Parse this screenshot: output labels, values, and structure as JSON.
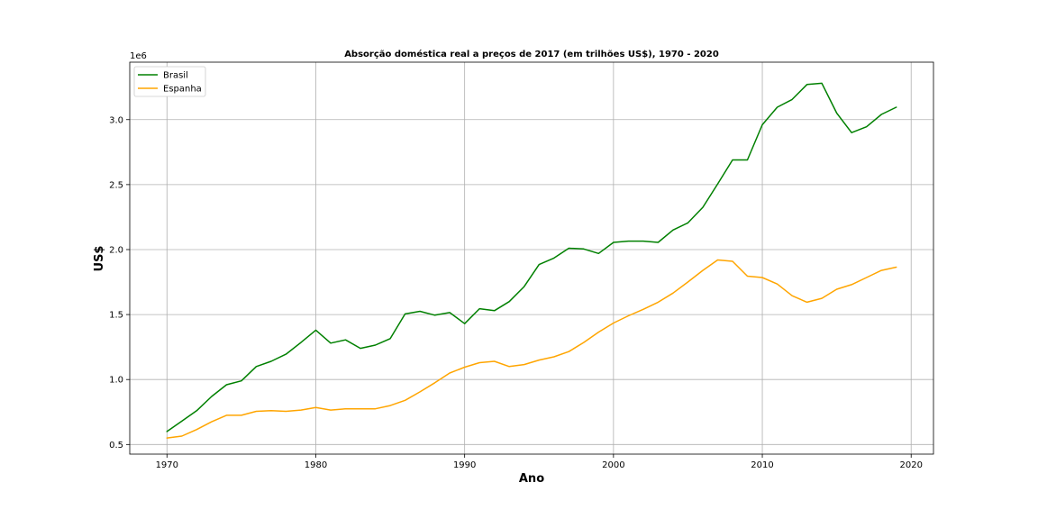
{
  "chart_data": {
    "type": "line",
    "title": "Absorção doméstica real a preços de 2017 (em trilhões US$), 1970 - 2020",
    "xlabel": "Ano",
    "ylabel": "US$",
    "y_offset_label": "1e6",
    "xlim": [
      1967.5,
      2021.5
    ],
    "ylim": [
      426000,
      3442000
    ],
    "x_ticks": [
      1970,
      1980,
      1990,
      2000,
      2010,
      2020
    ],
    "y_ticks": [
      500000,
      1000000,
      1500000,
      2000000,
      2500000,
      3000000
    ],
    "y_tick_labels": [
      "0.5",
      "1.0",
      "1.5",
      "2.0",
      "2.5",
      "3.0"
    ],
    "grid": true,
    "legend_position": "top-left",
    "x": [
      1970,
      1971,
      1972,
      1973,
      1974,
      1975,
      1976,
      1977,
      1978,
      1979,
      1980,
      1981,
      1982,
      1983,
      1984,
      1985,
      1986,
      1987,
      1988,
      1989,
      1990,
      1991,
      1992,
      1993,
      1994,
      1995,
      1996,
      1997,
      1998,
      1999,
      2000,
      2001,
      2002,
      2003,
      2004,
      2005,
      2006,
      2007,
      2008,
      2009,
      2010,
      2011,
      2012,
      2013,
      2014,
      2015,
      2016,
      2017,
      2018,
      2019
    ],
    "series": [
      {
        "name": "Brasil",
        "color": "#008000",
        "values": [
          600000,
          680000,
          760000,
          870000,
          960000,
          990000,
          1100000,
          1140000,
          1195000,
          1285000,
          1380000,
          1280000,
          1305000,
          1240000,
          1265000,
          1315000,
          1505000,
          1525000,
          1495000,
          1515000,
          1430000,
          1545000,
          1530000,
          1600000,
          1715000,
          1885000,
          1935000,
          2010000,
          2005000,
          1970000,
          2055000,
          2065000,
          2065000,
          2055000,
          2150000,
          2205000,
          2325000,
          2505000,
          2690000,
          2690000,
          2960000,
          3095000,
          3155000,
          3270000,
          3280000,
          3050000,
          2900000,
          2945000,
          3040000,
          3095000
        ]
      },
      {
        "name": "Espanha",
        "color": "#FFA500",
        "values": [
          550000,
          565000,
          615000,
          675000,
          725000,
          725000,
          755000,
          760000,
          755000,
          765000,
          785000,
          765000,
          775000,
          775000,
          775000,
          800000,
          840000,
          905000,
          975000,
          1050000,
          1095000,
          1130000,
          1140000,
          1100000,
          1115000,
          1150000,
          1175000,
          1215000,
          1285000,
          1365000,
          1435000,
          1490000,
          1540000,
          1595000,
          1665000,
          1750000,
          1840000,
          1920000,
          1910000,
          1795000,
          1785000,
          1735000,
          1645000,
          1595000,
          1625000,
          1695000,
          1730000,
          1785000,
          1840000,
          1865000
        ]
      }
    ]
  }
}
